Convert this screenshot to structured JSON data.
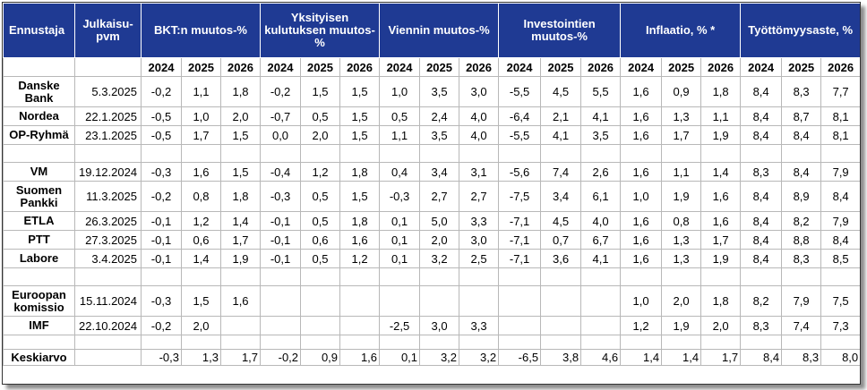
{
  "headers": {
    "forecaster": "Ennustaja",
    "published": "Julkaisu-pvm",
    "groups": [
      "BKT:n muutos-%",
      "Yksityisen kulutuksen muutos-%",
      "Viennin muutos-%",
      "Investointien muutos-%",
      "Inflaatio, % *",
      "Työttömyysaste, %"
    ]
  },
  "years": [
    "2024",
    "2025",
    "2026"
  ],
  "rows": [
    {
      "name": "Danske Bank",
      "date": "5.3.2025",
      "values": [
        "-0,2",
        "1,1",
        "1,8",
        "-0,2",
        "1,5",
        "1,5",
        "1,0",
        "3,5",
        "3,0",
        "-5,5",
        "4,5",
        "5,5",
        "1,6",
        "0,9",
        "1,8",
        "8,4",
        "8,3",
        "7,7"
      ]
    },
    {
      "name": "Nordea",
      "date": "22.1.2025",
      "values": [
        "-0,5",
        "1,0",
        "2,0",
        "-0,7",
        "0,5",
        "1,5",
        "0,5",
        "2,4",
        "4,0",
        "-6,4",
        "2,1",
        "4,1",
        "1,6",
        "1,3",
        "1,1",
        "8,4",
        "8,7",
        "8,1"
      ]
    },
    {
      "name": "OP-Ryhmä",
      "date": "23.1.2025",
      "values": [
        "-0,5",
        "1,7",
        "1,5",
        "0,0",
        "2,0",
        "1,5",
        "1,1",
        "3,5",
        "4,0",
        "-5,5",
        "4,1",
        "3,5",
        "1,6",
        "1,7",
        "1,9",
        "8,4",
        "8,4",
        "8,1"
      ]
    },
    {
      "name": "VM",
      "date": "19.12.2024",
      "values": [
        "-0,3",
        "1,6",
        "1,5",
        "-0,4",
        "1,2",
        "1,8",
        "0,4",
        "3,4",
        "3,1",
        "-5,6",
        "7,4",
        "2,6",
        "1,6",
        "1,1",
        "1,4",
        "8,3",
        "8,4",
        "7,9"
      ]
    },
    {
      "name": "Suomen Pankki",
      "date": "11.3.2025",
      "values": [
        "-0,2",
        "0,8",
        "1,8",
        "-0,3",
        "0,5",
        "1,5",
        "-0,3",
        "2,7",
        "2,7",
        "-7,5",
        "3,4",
        "6,1",
        "1,0",
        "1,9",
        "1,6",
        "8,4",
        "8,9",
        "8,4"
      ]
    },
    {
      "name": "ETLA",
      "date": "26.3.2025",
      "values": [
        "-0,1",
        "1,2",
        "1,4",
        "-0,1",
        "0,5",
        "1,8",
        "0,1",
        "5,0",
        "3,3",
        "-7,1",
        "4,5",
        "4,0",
        "1,6",
        "0,8",
        "1,6",
        "8,4",
        "8,2",
        "7,9"
      ]
    },
    {
      "name": "PTT",
      "date": "27.3.2025",
      "values": [
        "-0,1",
        "0,6",
        "1,7",
        "-0,1",
        "0,6",
        "1,6",
        "0,1",
        "2,0",
        "3,0",
        "-7,1",
        "0,7",
        "6,7",
        "1,6",
        "1,3",
        "1,7",
        "8,4",
        "8,8",
        "8,4"
      ]
    },
    {
      "name": "Labore",
      "date": "3.4.2025",
      "values": [
        "-0,1",
        "1,4",
        "1,9",
        "-0,1",
        "0,5",
        "1,2",
        "0,1",
        "3,2",
        "2,5",
        "-7,1",
        "3,6",
        "4,1",
        "1,6",
        "1,3",
        "1,9",
        "8,4",
        "8,3",
        "8,5"
      ]
    },
    {
      "name": "Euroopan komissio",
      "date": "15.11.2024",
      "values": [
        "-0,3",
        "1,5",
        "1,6",
        "",
        "",
        "",
        "",
        "",
        "",
        "",
        "",
        "",
        "1,0",
        "2,0",
        "1,8",
        "8,2",
        "7,9",
        "7,5"
      ]
    },
    {
      "name": "IMF",
      "date": "22.10.2024",
      "values": [
        "-0,2",
        "2,0",
        "",
        "",
        "",
        "",
        "-2,5",
        "3,0",
        "3,3",
        "",
        "",
        "",
        "1,2",
        "1,9",
        "2,0",
        "8,3",
        "7,4",
        "7,3"
      ]
    }
  ],
  "average": {
    "name": "Keskiarvo",
    "values": [
      "-0,3",
      "1,3",
      "1,7",
      "-0,2",
      "0,9",
      "1,6",
      "0,1",
      "3,2",
      "3,2",
      "-6,5",
      "3,8",
      "4,6",
      "1,4",
      "1,4",
      "1,7",
      "8,4",
      "8,3",
      "8,0"
    ]
  }
}
